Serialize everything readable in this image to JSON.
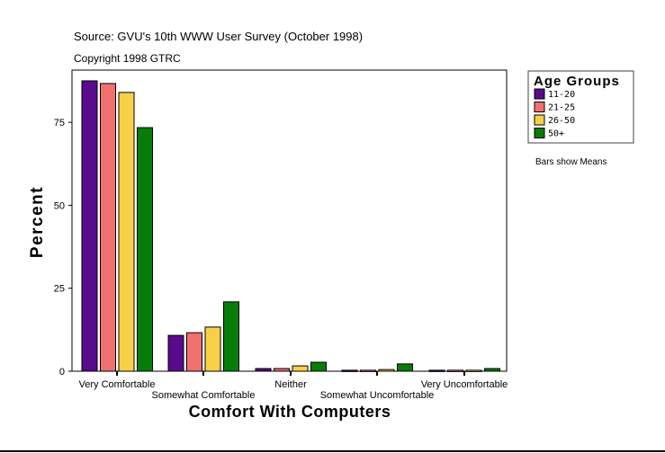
{
  "chart_data": {
    "type": "bar",
    "source": "Source: GVU's 10th WWW User Survey (October 1998)",
    "copyright": "Copyright 1998 GTRC",
    "xlabel": "Comfort With Computers",
    "ylabel": "Percent",
    "ylim": [
      0,
      87
    ],
    "yticks": [
      0,
      25,
      50,
      75
    ],
    "categories": [
      "Very Comfortable",
      "Somewhat Comfortable",
      "Neither",
      "Somewhat Uncomfortable",
      "Very Uncomfortable"
    ],
    "legend_title": "Age Groups",
    "legend_position": "right",
    "note": "Bars show Means",
    "series": [
      {
        "name": "11-20",
        "color": "#5a0a8c",
        "values": [
          87.5,
          10.8,
          0.8,
          0.3,
          0.3
        ]
      },
      {
        "name": "21-25",
        "color": "#f07070",
        "values": [
          86.7,
          11.6,
          0.8,
          0.3,
          0.3
        ]
      },
      {
        "name": "26-50",
        "color": "#f8d048",
        "values": [
          84.0,
          13.3,
          1.6,
          0.5,
          0.3
        ]
      },
      {
        "name": "50+",
        "color": "#087c08",
        "values": [
          73.4,
          20.9,
          2.7,
          2.2,
          0.8
        ]
      }
    ]
  }
}
